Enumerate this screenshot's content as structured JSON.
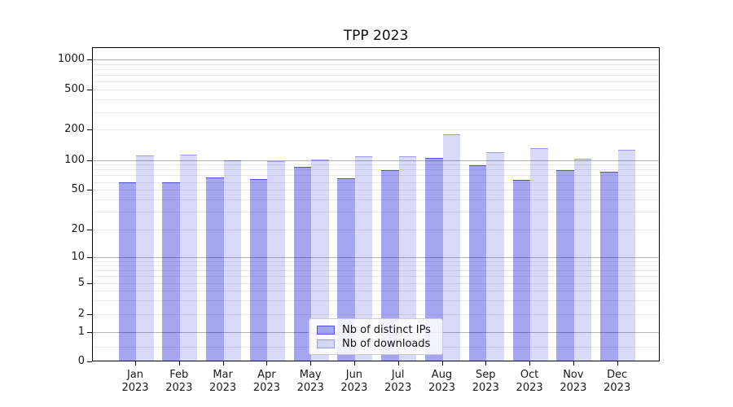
{
  "title": "TPP 2023",
  "colors": {
    "ips_fill": "rgba(0,0,212,0.35)",
    "ips_edge": "rgba(0,0,212,0.50)",
    "downloads_fill": "rgba(0,0,208,0.15)",
    "downloads_edge": "rgba(0,0,208,0.28)",
    "grid_major": "#b3b3b3",
    "grid_minor": "#e9e9e9",
    "axis": "#000000"
  },
  "legend": {
    "items": [
      {
        "label": "Nb of distinct IPs",
        "series": "ips"
      },
      {
        "label": "Nb of downloads",
        "series": "downloads"
      }
    ]
  },
  "y_axis": {
    "tick_values": [
      0,
      1,
      2,
      5,
      10,
      20,
      50,
      100,
      200,
      500,
      1000
    ],
    "tick_labels": [
      "0",
      "1",
      "2",
      "5",
      "10",
      "20",
      "50",
      "100",
      "200",
      "500",
      "1000"
    ]
  },
  "chart_data": {
    "type": "bar",
    "title": "TPP 2023",
    "categories": [
      "Jan 2023",
      "Feb 2023",
      "Mar 2023",
      "Apr 2023",
      "May 2023",
      "Jun 2023",
      "Jul 2023",
      "Aug 2023",
      "Sep 2023",
      "Oct 2023",
      "Nov 2023",
      "Dec 2023"
    ],
    "series": [
      {
        "name": "Nb of distinct IPs",
        "values": [
          61,
          61,
          68,
          65,
          87,
          67,
          81,
          108,
          91,
          64,
          80,
          78
        ]
      },
      {
        "name": "Nb of downloads",
        "values": [
          114,
          115,
          101,
          100,
          104,
          111,
          112,
          184,
          121,
          133,
          106,
          128
        ]
      }
    ],
    "yscale": "symlog",
    "yticks": [
      0,
      1,
      2,
      5,
      10,
      20,
      50,
      100,
      200,
      500,
      1000
    ],
    "ylim": [
      0,
      1300
    ],
    "grid": true,
    "grid_major_values": [
      1,
      10,
      100,
      1000
    ],
    "grid_minor_values": [
      0.5,
      2,
      3,
      4,
      5,
      6,
      7,
      8,
      9,
      20,
      30,
      40,
      50,
      60,
      70,
      80,
      90,
      200,
      300,
      400,
      500,
      600,
      700,
      800,
      900
    ],
    "legend_position": "lower center",
    "xlabel": "",
    "ylabel": ""
  }
}
